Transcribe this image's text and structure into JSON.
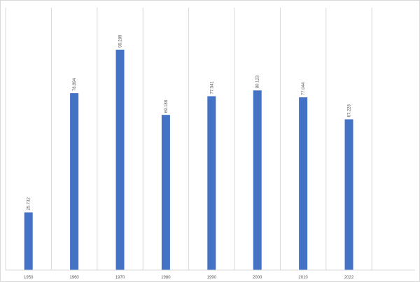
{
  "chart_data": {
    "type": "bar",
    "title": "",
    "xlabel": "",
    "ylabel": "",
    "categories": [
      "1950",
      "1960",
      "1970",
      "1980",
      "1990",
      "2000",
      "2010",
      "2022"
    ],
    "values": [
      25.732,
      78.894,
      98.289,
      69.188,
      77.541,
      80.123,
      77.044,
      67.228
    ],
    "value_labels": [
      "25.732",
      "78.894",
      "98.289",
      "69.188",
      "77.541",
      "80.123",
      "77.044",
      "67.228"
    ],
    "ylim": [
      0,
      117
    ],
    "gridlines": "vertical",
    "legend": "none",
    "colors": {
      "bar": "#4472c4",
      "grid": "#d9d9d9",
      "text": "#595959"
    }
  }
}
